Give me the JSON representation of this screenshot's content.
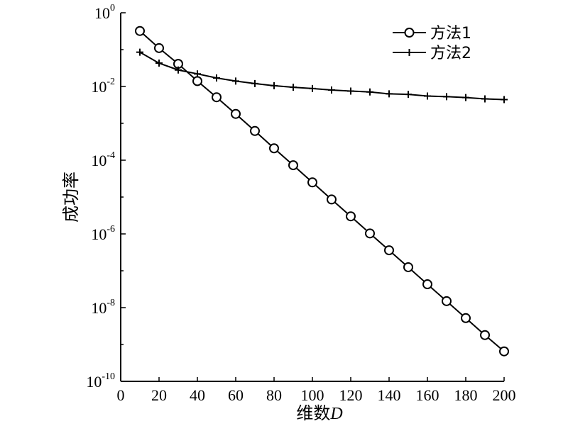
{
  "chart_data": {
    "type": "line",
    "title": "",
    "xlabel_main": "维数",
    "xlabel_var": "D",
    "ylabel": "成功率",
    "y_scale": "log",
    "xlim": [
      0,
      200
    ],
    "ylim_exp": [
      -10,
      0
    ],
    "x_ticks": [
      0,
      20,
      40,
      60,
      80,
      100,
      120,
      140,
      160,
      180,
      200
    ],
    "y_tick_exponents": [
      -10,
      -8,
      -6,
      -4,
      -2,
      0
    ],
    "y_tick_base": "10",
    "grid": false,
    "legend_position": "top-right",
    "x": [
      10,
      20,
      30,
      40,
      50,
      60,
      70,
      80,
      90,
      100,
      110,
      120,
      130,
      140,
      150,
      160,
      170,
      180,
      190,
      200
    ],
    "series": [
      {
        "name": "方法1",
        "marker": "circle",
        "values": [
          0.32,
          0.11,
          0.041,
          0.014,
          0.0051,
          0.0018,
          0.00062,
          0.00021,
          7.3e-05,
          2.5e-05,
          8.6e-06,
          3e-06,
          1.03e-06,
          3.6e-07,
          1.25e-07,
          4.3e-08,
          1.5e-08,
          5.2e-09,
          1.8e-09,
          6.5e-10
        ]
      },
      {
        "name": "方法2",
        "marker": "plus",
        "values": [
          0.085,
          0.043,
          0.028,
          0.022,
          0.017,
          0.014,
          0.012,
          0.0105,
          0.0095,
          0.0088,
          0.008,
          0.0075,
          0.0071,
          0.0063,
          0.0061,
          0.0055,
          0.0053,
          0.005,
          0.0046,
          0.0044
        ]
      }
    ]
  }
}
